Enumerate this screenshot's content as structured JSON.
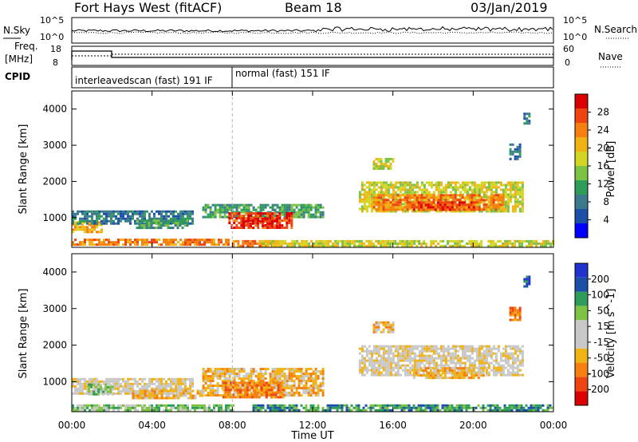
{
  "header": {
    "station": "Fort Hays West (fitACF)",
    "beam": "Beam 18",
    "date": "03/Jan/2019"
  },
  "top_panels": {
    "nsky_label": "N.Sky",
    "nsearch_label": "N.Search",
    "freq_label_line1": "Freq.",
    "freq_label_line2": "[MHz]",
    "nave_label": "Nave",
    "cpid_label": "CPID",
    "nsky_ticks": [
      "10^5",
      "10^0"
    ],
    "nsearch_ticks": [
      "10^5",
      "10^0"
    ],
    "freq_ticks": [
      "18",
      "8"
    ],
    "nave_ticks": [
      "60",
      "0"
    ],
    "cpid_segments": [
      {
        "label": "interleavedscan (fast) 191 IF",
        "start_hour": 0
      },
      {
        "label": "normal (fast) 151 IF",
        "start_hour": 8.0
      }
    ]
  },
  "chart_data": [
    {
      "type": "heatmap",
      "panel": "power",
      "xlabel": "",
      "ylabel": "Slant Range [km]",
      "x_ticks": [
        "00:00",
        "04:00",
        "08:00",
        "12:00",
        "16:00",
        "20:00",
        "00:00"
      ],
      "y_ticks": [
        "1000",
        "2000",
        "3000",
        "4000"
      ],
      "ylim": [
        180,
        4500
      ],
      "xlim_hours": [
        0,
        24
      ],
      "colorbar": {
        "label": "Power [dB]",
        "ticks": [
          "28",
          "24",
          "20",
          "16",
          "12",
          "8",
          "4"
        ],
        "colors": [
          "#0000ff",
          "#1c50a8",
          "#3a7a8c",
          "#2f9d5a",
          "#7dc242",
          "#d4d424",
          "#f0b214",
          "#f57f0f",
          "#ee4411",
          "#dd0000"
        ]
      },
      "regions": [
        {
          "h0": 0.0,
          "h1": 1.5,
          "r0": 600,
          "r1": 900,
          "level": 7
        },
        {
          "h0": 0.0,
          "h1": 6.0,
          "r0": 820,
          "r1": 1200,
          "level": 3
        },
        {
          "h0": 0.0,
          "h1": 7.8,
          "r0": 250,
          "r1": 420,
          "level": 8
        },
        {
          "h0": 3.2,
          "h1": 5.8,
          "r0": 700,
          "r1": 950,
          "level": 4
        },
        {
          "h0": 6.5,
          "h1": 12.5,
          "r0": 1000,
          "r1": 1380,
          "level": 4
        },
        {
          "h0": 7.8,
          "h1": 11.0,
          "r0": 700,
          "r1": 1150,
          "level": 9
        },
        {
          "h0": 8.5,
          "h1": 10.2,
          "r0": 780,
          "r1": 1000,
          "level": 10
        },
        {
          "h0": 8.0,
          "h1": 10.5,
          "r0": 220,
          "r1": 380,
          "level": 8
        },
        {
          "h0": 14.3,
          "h1": 22.5,
          "r0": 1150,
          "r1": 2000,
          "level": 6
        },
        {
          "h0": 15.0,
          "h1": 21.5,
          "r0": 1200,
          "r1": 1650,
          "level": 8
        },
        {
          "h0": 17.0,
          "h1": 20.0,
          "r0": 1250,
          "r1": 1450,
          "level": 9
        },
        {
          "h0": 15.0,
          "h1": 16.0,
          "r0": 2350,
          "r1": 2650,
          "level": 6
        },
        {
          "h0": 21.8,
          "h1": 22.3,
          "r0": 2600,
          "r1": 3050,
          "level": 3
        },
        {
          "h0": 22.5,
          "h1": 22.8,
          "r0": 3600,
          "r1": 3900,
          "level": 3
        },
        {
          "h0": 9.5,
          "h1": 24.0,
          "r0": 200,
          "r1": 380,
          "level": 6
        }
      ]
    },
    {
      "type": "heatmap",
      "panel": "velocity",
      "xlabel": "Time UT",
      "ylabel": "Slant Range [km]",
      "x_ticks": [
        "00:00",
        "04:00",
        "08:00",
        "12:00",
        "16:00",
        "20:00",
        "00:00"
      ],
      "y_ticks": [
        "1000",
        "2000",
        "3000",
        "4000"
      ],
      "ylim": [
        180,
        4500
      ],
      "xlim_hours": [
        0,
        24
      ],
      "colorbar": {
        "label": "Velocity [m s^-1]",
        "ticks": [
          "200",
          "100",
          "50",
          "15",
          "-15",
          "-50",
          "-100",
          "-200"
        ],
        "colors": [
          "#dd0000",
          "#ee4411",
          "#f57f0f",
          "#f0b214",
          "#c8c8c8",
          "#c8c8c8",
          "#7dc242",
          "#2f9d5a",
          "#1c50a8",
          "#2233cc"
        ]
      },
      "regions": [
        {
          "h0": 0.0,
          "h1": 6.0,
          "r0": 700,
          "r1": 1100,
          "level": 5
        },
        {
          "h0": 0.8,
          "h1": 2.0,
          "r0": 650,
          "r1": 950,
          "level": 7
        },
        {
          "h0": 0.0,
          "h1": 8.0,
          "r0": 200,
          "r1": 380,
          "level": 7
        },
        {
          "h0": 3.0,
          "h1": 6.5,
          "r0": 550,
          "r1": 780,
          "level": 4
        },
        {
          "h0": 6.5,
          "h1": 12.5,
          "r0": 650,
          "r1": 1380,
          "level": 4
        },
        {
          "h0": 7.5,
          "h1": 10.5,
          "r0": 600,
          "r1": 1000,
          "level": 3
        },
        {
          "h0": 9.0,
          "h1": 24.0,
          "r0": 200,
          "r1": 380,
          "level": 8
        },
        {
          "h0": 14.3,
          "h1": 22.5,
          "r0": 1150,
          "r1": 2000,
          "level": 5
        },
        {
          "h0": 17.0,
          "h1": 20.5,
          "r0": 1100,
          "r1": 1400,
          "level": 4
        },
        {
          "h0": 15.0,
          "h1": 16.0,
          "r0": 2350,
          "r1": 2650,
          "level": 4
        },
        {
          "h0": 21.8,
          "h1": 22.3,
          "r0": 2700,
          "r1": 3050,
          "level": 3
        },
        {
          "h0": 22.5,
          "h1": 22.8,
          "r0": 3600,
          "r1": 3900,
          "level": 9
        }
      ]
    }
  ]
}
